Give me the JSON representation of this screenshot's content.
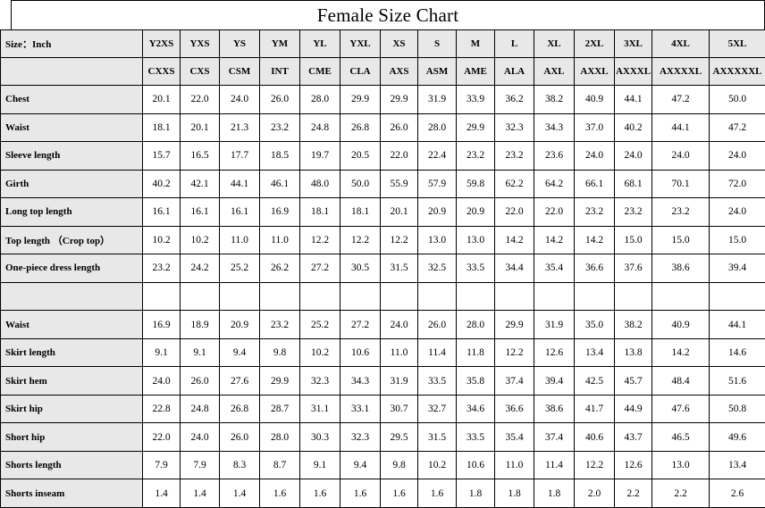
{
  "colors": {
    "header_bg": "#e8e8e8",
    "border": "#000000",
    "text": "#000000",
    "background": "#ffffff"
  },
  "chart_data": {
    "type": "table",
    "title": "Female Size Chart",
    "unit_label": "Size：Inch",
    "size_headers": [
      "Y2XS",
      "YXS",
      "YS",
      "YM",
      "YL",
      "YXL",
      "XS",
      "S",
      "M",
      "L",
      "XL",
      "2XL",
      "3XL",
      "4XL",
      "5XL"
    ],
    "code_headers": [
      "CXXS",
      "CXS",
      "CSM",
      "INT",
      "CME",
      "CLA",
      "AXS",
      "ASM",
      "AME",
      "ALA",
      "AXL",
      "AXXL",
      "AXXXL",
      "AXXXXL",
      "AXXXXXL"
    ],
    "rows": [
      {
        "label": "Chest",
        "values": [
          "20.1",
          "22.0",
          "24.0",
          "26.0",
          "28.0",
          "29.9",
          "29.9",
          "31.9",
          "33.9",
          "36.2",
          "38.2",
          "40.9",
          "44.1",
          "47.2",
          "50.0"
        ]
      },
      {
        "label": "Waist",
        "values": [
          "18.1",
          "20.1",
          "21.3",
          "23.2",
          "24.8",
          "26.8",
          "26.0",
          "28.0",
          "29.9",
          "32.3",
          "34.3",
          "37.0",
          "40.2",
          "44.1",
          "47.2"
        ]
      },
      {
        "label": "Sleeve length",
        "values": [
          "15.7",
          "16.5",
          "17.7",
          "18.5",
          "19.7",
          "20.5",
          "22.0",
          "22.4",
          "23.2",
          "23.2",
          "23.6",
          "24.0",
          "24.0",
          "24.0",
          "24.0"
        ]
      },
      {
        "label": "Girth",
        "values": [
          "40.2",
          "42.1",
          "44.1",
          "46.1",
          "48.0",
          "50.0",
          "55.9",
          "57.9",
          "59.8",
          "62.2",
          "64.2",
          "66.1",
          "68.1",
          "70.1",
          "72.0"
        ]
      },
      {
        "label": "Long top length",
        "values": [
          "16.1",
          "16.1",
          "16.1",
          "16.9",
          "18.1",
          "18.1",
          "20.1",
          "20.9",
          "20.9",
          "22.0",
          "22.0",
          "23.2",
          "23.2",
          "23.2",
          "24.0"
        ]
      },
      {
        "label": "Top length （Crop top）",
        "values": [
          "10.2",
          "10.2",
          "11.0",
          "11.0",
          "12.2",
          "12.2",
          "12.2",
          "13.0",
          "13.0",
          "14.2",
          "14.2",
          "14.2",
          "15.0",
          "15.0",
          "15.0"
        ]
      },
      {
        "label": "One-piece dress length",
        "values": [
          "23.2",
          "24.2",
          "25.2",
          "26.2",
          "27.2",
          "30.5",
          "31.5",
          "32.5",
          "33.5",
          "34.4",
          "35.4",
          "36.6",
          "37.6",
          "38.6",
          "39.4"
        ]
      },
      {
        "label": "",
        "values": [
          "",
          "",
          "",
          "",
          "",
          "",
          "",
          "",
          "",
          "",
          "",
          "",
          "",
          "",
          ""
        ]
      },
      {
        "label": "Waist",
        "values": [
          "16.9",
          "18.9",
          "20.9",
          "23.2",
          "25.2",
          "27.2",
          "24.0",
          "26.0",
          "28.0",
          "29.9",
          "31.9",
          "35.0",
          "38.2",
          "40.9",
          "44.1"
        ]
      },
      {
        "label": "Skirt length",
        "values": [
          "9.1",
          "9.1",
          "9.4",
          "9.8",
          "10.2",
          "10.6",
          "11.0",
          "11.4",
          "11.8",
          "12.2",
          "12.6",
          "13.4",
          "13.8",
          "14.2",
          "14.6"
        ]
      },
      {
        "label": "Skirt hem",
        "values": [
          "24.0",
          "26.0",
          "27.6",
          "29.9",
          "32.3",
          "34.3",
          "31.9",
          "33.5",
          "35.8",
          "37.4",
          "39.4",
          "42.5",
          "45.7",
          "48.4",
          "51.6"
        ]
      },
      {
        "label": "Skirt hip",
        "values": [
          "22.8",
          "24.8",
          "26.8",
          "28.7",
          "31.1",
          "33.1",
          "30.7",
          "32.7",
          "34.6",
          "36.6",
          "38.6",
          "41.7",
          "44.9",
          "47.6",
          "50.8"
        ]
      },
      {
        "label": "Short hip",
        "values": [
          "22.0",
          "24.0",
          "26.0",
          "28.0",
          "30.3",
          "32.3",
          "29.5",
          "31.5",
          "33.5",
          "35.4",
          "37.4",
          "40.6",
          "43.7",
          "46.5",
          "49.6"
        ]
      },
      {
        "label": "Shorts length",
        "values": [
          "7.9",
          "7.9",
          "8.3",
          "8.7",
          "9.1",
          "9.4",
          "9.8",
          "10.2",
          "10.6",
          "11.0",
          "11.4",
          "12.2",
          "12.6",
          "13.0",
          "13.4"
        ]
      },
      {
        "label": "Shorts inseam",
        "values": [
          "1.4",
          "1.4",
          "1.4",
          "1.6",
          "1.6",
          "1.6",
          "1.6",
          "1.6",
          "1.8",
          "1.8",
          "1.8",
          "2.0",
          "2.2",
          "2.2",
          "2.6"
        ]
      }
    ]
  }
}
